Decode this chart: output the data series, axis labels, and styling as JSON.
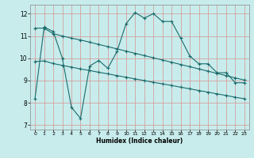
{
  "xlabel": "Humidex (Indice chaleur)",
  "bg_color": "#c8ecec",
  "grid_color": "#d4a0a0",
  "line_color": "#1a6b6b",
  "xlim": [
    -0.5,
    23.5
  ],
  "ylim": [
    6.8,
    12.4
  ],
  "yticks": [
    7,
    8,
    9,
    10,
    11,
    12
  ],
  "xticks": [
    0,
    1,
    2,
    3,
    4,
    5,
    6,
    7,
    8,
    9,
    10,
    11,
    12,
    13,
    14,
    15,
    16,
    17,
    18,
    19,
    20,
    21,
    22,
    23
  ],
  "line1_x": [
    0,
    1,
    2,
    3,
    4,
    5,
    6,
    7,
    8,
    9,
    10,
    11,
    12,
    13,
    14,
    15,
    16,
    17,
    18,
    19,
    20,
    21,
    22,
    23
  ],
  "line1_y": [
    8.2,
    11.4,
    11.2,
    10.0,
    7.8,
    7.3,
    9.65,
    9.9,
    9.55,
    10.3,
    11.55,
    12.05,
    11.8,
    12.0,
    11.65,
    11.65,
    10.9,
    10.1,
    9.75,
    9.75,
    9.35,
    9.35,
    8.9,
    8.9
  ],
  "line2_x": [
    0,
    1,
    2,
    3,
    4,
    5,
    6,
    7,
    8,
    9,
    10,
    11,
    12,
    13,
    14,
    15,
    16,
    17,
    18,
    19,
    20,
    21,
    22,
    23
  ],
  "line2_y": [
    11.35,
    11.35,
    11.1,
    11.0,
    10.9,
    10.82,
    10.72,
    10.62,
    10.52,
    10.42,
    10.32,
    10.22,
    10.12,
    10.02,
    9.92,
    9.82,
    9.72,
    9.62,
    9.52,
    9.42,
    9.32,
    9.22,
    9.12,
    9.02
  ],
  "line3_x": [
    0,
    1,
    2,
    3,
    4,
    5,
    6,
    7,
    8,
    9,
    10,
    11,
    12,
    13,
    14,
    15,
    16,
    17,
    18,
    19,
    20,
    21,
    22,
    23
  ],
  "line3_y": [
    9.85,
    9.88,
    9.76,
    9.68,
    9.6,
    9.52,
    9.45,
    9.37,
    9.3,
    9.22,
    9.15,
    9.07,
    9.0,
    8.92,
    8.85,
    8.78,
    8.7,
    8.63,
    8.55,
    8.48,
    8.4,
    8.33,
    8.25,
    8.18
  ]
}
